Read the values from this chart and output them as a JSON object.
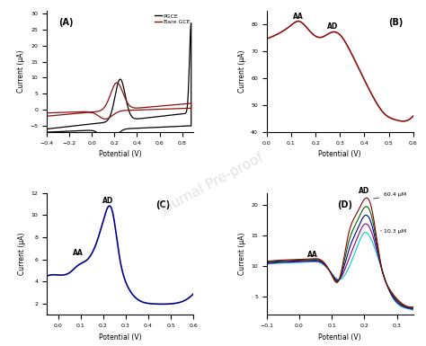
{
  "panel_A": {
    "label": "(A)",
    "xlabel": "Potential (V)",
    "ylabel": "Current (μA)",
    "xlim": [
      -0.4,
      0.9
    ],
    "ylim": [
      -7,
      31
    ],
    "yticks": [
      -5,
      0,
      5,
      10,
      15,
      20,
      25,
      30
    ],
    "xticks": [
      -0.4,
      -0.2,
      0.0,
      0.2,
      0.4,
      0.6,
      0.8
    ],
    "legend": [
      "PGCE",
      "Bare GCE"
    ],
    "colors": [
      "black",
      "#8B1010"
    ]
  },
  "panel_B": {
    "label": "(B)",
    "xlabel": "Potential (V)",
    "ylabel": "Current (μA)",
    "xlim": [
      0.0,
      0.6
    ],
    "ylim": [
      40,
      85
    ],
    "yticks": [
      40,
      50,
      60,
      70,
      80
    ],
    "xticks": [
      0.0,
      0.1,
      0.2,
      0.3,
      0.4,
      0.5,
      0.6
    ],
    "color": "#8B1010"
  },
  "panel_C": {
    "label": "(C)",
    "xlabel": "Potential (V)",
    "ylabel": "Current (μA)",
    "xlim": [
      -0.05,
      0.6
    ],
    "ylim": [
      1,
      12
    ],
    "yticks": [
      2,
      4,
      6,
      8,
      10,
      12
    ],
    "xticks": [
      0.0,
      0.1,
      0.2,
      0.3,
      0.4,
      0.5,
      0.6
    ],
    "color": "#00008B"
  },
  "panel_D": {
    "label": "(D)",
    "xlabel": "Potential (V)",
    "ylabel": "Current (μA)",
    "xlim": [
      -0.1,
      0.35
    ],
    "ylim": [
      2,
      22
    ],
    "yticks": [
      5,
      10,
      15,
      20
    ],
    "xticks": [
      -0.1,
      0.0,
      0.1,
      0.2,
      0.3
    ],
    "colors": [
      "#00CCCC",
      "#8B008B",
      "#00008B",
      "#006400",
      "#8B0000"
    ]
  },
  "watermark": "Journal Pre-proof",
  "background": "#ffffff"
}
